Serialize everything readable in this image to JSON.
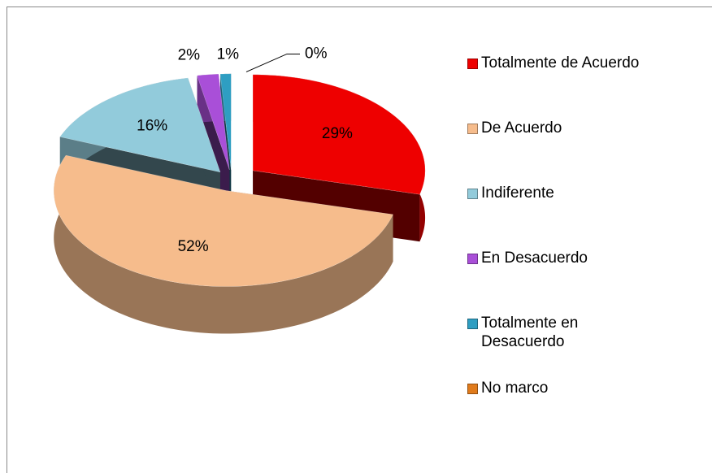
{
  "chart_data": {
    "type": "pie3d",
    "categories": [
      "Totalmente de Acuerdo",
      "De Acuerdo",
      "Indiferente",
      "En Desacuerdo",
      "Totalmente en Desacuerdo",
      "No marco"
    ],
    "values": [
      29,
      52,
      16,
      2,
      1,
      0
    ],
    "value_labels": [
      "29%",
      "52%",
      "16%",
      "2%",
      "1%",
      "0%"
    ],
    "colors": [
      "#ee0000",
      "#f6bc8c",
      "#92cbdb",
      "#a94fd8",
      "#2e9ec2",
      "#e07b1c"
    ],
    "legend": "right"
  }
}
